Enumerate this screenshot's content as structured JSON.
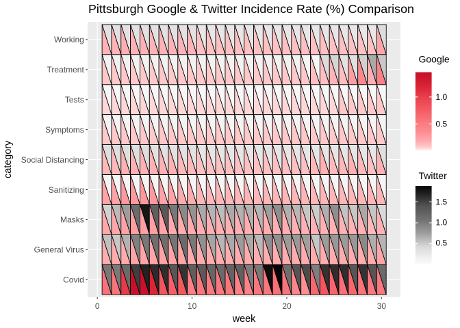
{
  "title": "Pittsburgh Google & Twitter Incidence Rate (%) Comparison",
  "axes": {
    "x": {
      "label": "week",
      "tick_labels": [
        "0",
        "10",
        "20",
        "30"
      ],
      "tick_values": [
        0,
        10,
        20,
        30
      ]
    },
    "y": {
      "label": "category"
    }
  },
  "legends": {
    "google": {
      "title": "Google",
      "tick_labels": [
        "1.0",
        "0.5"
      ],
      "tick_values": [
        1.0,
        0.5
      ],
      "min": 0.01,
      "max": 1.46,
      "gradient_stops": [
        [
          0.0,
          "#FEEBEC"
        ],
        [
          0.055,
          "#FFC3C4"
        ],
        [
          0.13,
          "#FFA7AA"
        ],
        [
          0.235,
          "#FD8C91"
        ],
        [
          0.34,
          "#FA7C82"
        ],
        [
          0.428,
          "#F76C74"
        ],
        [
          0.515,
          "#F45B63"
        ],
        [
          0.603,
          "#EE4B57"
        ],
        [
          0.682,
          "#E8404D"
        ],
        [
          0.761,
          "#E22D3E"
        ],
        [
          0.866,
          "#D21E31"
        ],
        [
          1.0,
          "#C60E28"
        ]
      ]
    },
    "twitter": {
      "title": "Twitter",
      "tick_labels": [
        "1.5",
        "1.0",
        "0.5"
      ],
      "tick_values": [
        1.5,
        1.0,
        0.5
      ],
      "min": 0.0,
      "max": 1.88,
      "gradient_stops": [
        [
          0.0,
          "#FCFCFC"
        ],
        [
          0.087,
          "#F0F0F0"
        ],
        [
          0.226,
          "#DADADA"
        ],
        [
          0.4,
          "#9D9D9D"
        ],
        [
          0.574,
          "#717171"
        ],
        [
          0.748,
          "#525252"
        ],
        [
          0.922,
          "#1B1B1B"
        ],
        [
          1.0,
          "#050505"
        ]
      ]
    }
  },
  "colors": {
    "background": "#FFFFFF",
    "panel_bg": "#EBEBEB",
    "grid": "#FFFFFF",
    "axis_tick": "#333333",
    "tick_label": "#4D4D4D",
    "text": "#000000",
    "cell_border": "#000000"
  },
  "chart_data": {
    "type": "heatmap",
    "variant": "split-triangle",
    "title": "Pittsburgh Google & Twitter Incidence Rate (%) Comparison",
    "xlabel": "week",
    "ylabel": "category",
    "unit": "%",
    "weeks": [
      1,
      2,
      3,
      4,
      5,
      6,
      7,
      8,
      9,
      10,
      11,
      12,
      13,
      14,
      15,
      16,
      17,
      18,
      19,
      20,
      21,
      22,
      23,
      24,
      25,
      26,
      27,
      28,
      29,
      30
    ],
    "categories": [
      "Working",
      "Treatment",
      "Tests",
      "Symptoms",
      "Social Distancing",
      "Sanitizing",
      "Masks",
      "General Virus",
      "Covid"
    ],
    "series": [
      {
        "name": "Google",
        "triangle": "lower-left",
        "values": [
          [
            0.15,
            0.15,
            0.17,
            0.15,
            0.15,
            0.15,
            0.15,
            0.15,
            0.15,
            0.15,
            0.1,
            0.1,
            0.1,
            0.1,
            0.1,
            0.1,
            0.1,
            0.1,
            0.1,
            0.1,
            0.1,
            0.1,
            0.1,
            0.1,
            0.1,
            0.1,
            0.1,
            0.1,
            0.1,
            0.21
          ],
          [
            0.08,
            0.08,
            0.08,
            0.08,
            0.08,
            0.08,
            0.08,
            0.08,
            0.08,
            0.08,
            0.08,
            0.08,
            0.08,
            0.08,
            0.08,
            0.08,
            0.08,
            0.08,
            0.08,
            0.08,
            0.08,
            0.08,
            0.11,
            0.11,
            0.15,
            0.11,
            0.25,
            0.39,
            0.17,
            0.46
          ],
          [
            0.05,
            0.05,
            0.05,
            0.05,
            0.05,
            0.05,
            0.05,
            0.05,
            0.05,
            0.05,
            0.05,
            0.05,
            0.05,
            0.05,
            0.05,
            0.05,
            0.05,
            0.05,
            0.05,
            0.05,
            0.05,
            0.05,
            0.05,
            0.05,
            0.05,
            0.08,
            0.08,
            0.08,
            0.08,
            0.08
          ],
          [
            0.08,
            0.08,
            0.08,
            0.08,
            0.08,
            0.08,
            0.08,
            0.08,
            0.08,
            0.08,
            0.08,
            0.08,
            0.08,
            0.08,
            0.08,
            0.08,
            0.08,
            0.08,
            0.08,
            0.08,
            0.08,
            0.08,
            0.08,
            0.08,
            0.08,
            0.08,
            0.08,
            0.08,
            0.08,
            0.08
          ],
          [
            0.13,
            0.13,
            0.16,
            0.16,
            0.16,
            0.16,
            0.16,
            0.16,
            0.13,
            0.13,
            0.1,
            0.1,
            0.1,
            0.1,
            0.1,
            0.1,
            0.1,
            0.1,
            0.1,
            0.1,
            0.1,
            0.1,
            0.13,
            0.16,
            0.13,
            0.13,
            0.16,
            0.13,
            0.1,
            0.16
          ],
          [
            0.22,
            0.22,
            0.27,
            0.27,
            0.27,
            0.27,
            0.22,
            0.22,
            0.18,
            0.18,
            0.14,
            0.14,
            0.14,
            0.14,
            0.14,
            0.14,
            0.14,
            0.14,
            0.14,
            0.14,
            0.14,
            0.14,
            0.14,
            0.14,
            0.14,
            0.14,
            0.14,
            0.14,
            0.14,
            0.14
          ],
          [
            0.2,
            0.2,
            0.22,
            0.24,
            0.24,
            0.24,
            0.21,
            0.18,
            0.18,
            0.18,
            0.17,
            0.17,
            0.17,
            0.17,
            0.17,
            0.17,
            0.17,
            0.17,
            0.17,
            0.17,
            0.16,
            0.16,
            0.16,
            0.16,
            0.16,
            0.16,
            0.16,
            0.16,
            0.13,
            0.16
          ],
          [
            0.18,
            0.18,
            0.18,
            0.21,
            0.21,
            0.21,
            0.21,
            0.21,
            0.21,
            0.18,
            0.18,
            0.18,
            0.18,
            0.18,
            0.18,
            0.18,
            0.18,
            0.18,
            0.18,
            0.18,
            0.18,
            0.18,
            0.18,
            0.18,
            0.18,
            0.18,
            0.18,
            0.18,
            0.18,
            0.21
          ],
          [
            0.58,
            0.57,
            1.03,
            1.43,
            1.42,
            1.19,
            0.8,
            0.72,
            0.78,
            0.47,
            0.55,
            0.53,
            0.54,
            0.55,
            0.44,
            0.44,
            0.55,
            0.55,
            0.6,
            0.57,
            0.41,
            0.33,
            0.67,
            0.8,
            0.68,
            0.59,
            0.67,
            0.57,
            0.54,
            0.54
          ]
        ]
      },
      {
        "name": "Twitter",
        "triangle": "upper-right",
        "values": [
          [
            0.33,
            0.33,
            0.33,
            0.33,
            0.33,
            0.33,
            0.33,
            0.33,
            0.33,
            0.33,
            0.27,
            0.27,
            0.27,
            0.27,
            0.27,
            0.27,
            0.27,
            0.27,
            0.27,
            0.27,
            0.27,
            0.27,
            0.27,
            0.27,
            0.27,
            0.27,
            0.27,
            0.27,
            0.27,
            0.39
          ],
          [
            0.14,
            0.14,
            0.14,
            0.14,
            0.14,
            0.14,
            0.14,
            0.14,
            0.14,
            0.14,
            0.14,
            0.14,
            0.14,
            0.14,
            0.14,
            0.14,
            0.14,
            0.14,
            0.14,
            0.14,
            0.14,
            0.08,
            0.08,
            0.4,
            0.45,
            0.32,
            0.35,
            0.48,
            0.68,
            0.52
          ],
          [
            0.07,
            0.07,
            0.07,
            0.07,
            0.07,
            0.07,
            0.07,
            0.07,
            0.07,
            0.07,
            0.07,
            0.07,
            0.07,
            0.07,
            0.07,
            0.07,
            0.07,
            0.07,
            0.07,
            0.07,
            0.07,
            0.07,
            0.07,
            0.07,
            0.07,
            0.07,
            0.07,
            0.07,
            0.07,
            0.07
          ],
          [
            0.11,
            0.11,
            0.11,
            0.11,
            0.11,
            0.11,
            0.11,
            0.11,
            0.11,
            0.11,
            0.11,
            0.11,
            0.11,
            0.11,
            0.11,
            0.11,
            0.11,
            0.11,
            0.11,
            0.11,
            0.11,
            0.11,
            0.11,
            0.11,
            0.11,
            0.11,
            0.11,
            0.11,
            0.11,
            0.11
          ],
          [
            0.37,
            0.37,
            0.37,
            0.37,
            0.37,
            0.33,
            0.33,
            0.33,
            0.33,
            0.33,
            0.28,
            0.28,
            0.28,
            0.28,
            0.28,
            0.28,
            0.28,
            0.28,
            0.28,
            0.28,
            0.28,
            0.28,
            0.28,
            0.28,
            0.28,
            0.28,
            0.28,
            0.28,
            0.28,
            0.37
          ],
          [
            0.09,
            0.09,
            0.09,
            0.09,
            0.09,
            0.09,
            0.09,
            0.09,
            0.09,
            0.09,
            0.09,
            0.09,
            0.09,
            0.09,
            0.09,
            0.09,
            0.09,
            0.09,
            0.09,
            0.09,
            0.09,
            0.09,
            0.09,
            0.09,
            0.09,
            0.09,
            0.09,
            0.09,
            0.09,
            0.09
          ],
          [
            0.47,
            0.59,
            0.75,
            1.14,
            1.77,
            1.27,
            1.34,
            1.03,
            0.89,
            0.83,
            0.69,
            0.63,
            0.58,
            0.68,
            0.64,
            0.64,
            0.62,
            0.74,
            0.86,
            0.65,
            0.61,
            0.53,
            0.5,
            0.65,
            0.86,
            0.55,
            0.53,
            0.69,
            0.54,
            0.43
          ],
          [
            0.56,
            0.52,
            0.64,
            0.97,
            1.03,
            1.11,
            1.11,
            1.05,
            1.15,
            1.03,
            0.85,
            0.71,
            0.62,
            0.69,
            0.76,
            0.68,
            0.6,
            0.86,
            0.85,
            0.77,
            0.78,
            0.74,
            0.54,
            0.76,
            0.8,
            0.77,
            0.79,
            0.89,
            0.66,
            0.63
          ],
          [
            1.03,
            1.01,
            1.15,
            1.52,
            1.69,
            1.64,
            1.62,
            1.36,
            1.59,
            1.28,
            1.32,
            1.19,
            1.15,
            1.23,
            1.26,
            1.0,
            1.03,
            1.83,
            1.88,
            1.11,
            1.37,
            1.45,
            0.98,
            1.59,
            1.62,
            1.62,
            1.37,
            1.59,
            1.37,
            1.15
          ]
        ]
      }
    ],
    "xlim": [
      0,
      30
    ],
    "grid": "major-white-on-grey"
  }
}
